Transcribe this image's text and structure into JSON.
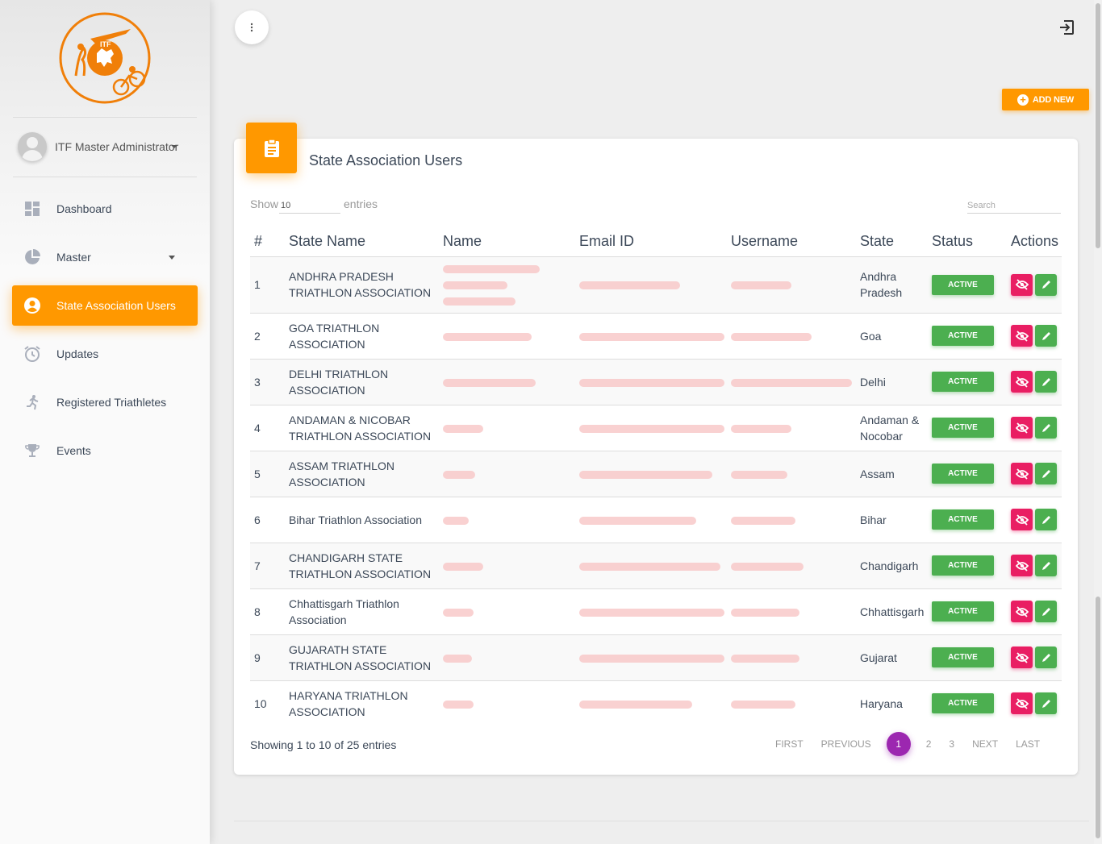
{
  "sidebar": {
    "logo_text": "ITF",
    "user_name": "ITF Master Administrator",
    "items": [
      {
        "label": "Dashboard",
        "icon": "dashboard-icon"
      },
      {
        "label": "Master",
        "icon": "pie-chart-icon"
      },
      {
        "label": "State Association Users",
        "icon": "account-circle-icon",
        "active": true
      },
      {
        "label": "Updates",
        "icon": "alarm-clock-icon"
      },
      {
        "label": "Registered Triathletes",
        "icon": "runner-icon"
      },
      {
        "label": "Events",
        "icon": "trophy-icon"
      }
    ]
  },
  "toolbar": {
    "add_new_label": "ADD NEW"
  },
  "card": {
    "title": "State Association Users",
    "show_label": "Show",
    "show_value": "10",
    "entries_label": "entries",
    "search_placeholder": "Search"
  },
  "table": {
    "headers": [
      "#",
      "State Name",
      "Name",
      "Email ID",
      "Username",
      "State",
      "Status",
      "Actions"
    ],
    "rows": [
      {
        "num": "1",
        "state_name": "ANDHRA PRADESH TRIATHLON ASSOCIATION",
        "state": "Andhra Pradesh",
        "status": "ACTIVE"
      },
      {
        "num": "2",
        "state_name": "GOA TRIATHLON ASSOCIATION",
        "state": "Goa",
        "status": "ACTIVE"
      },
      {
        "num": "3",
        "state_name": "DELHI TRIATHLON ASSOCIATION",
        "state": "Delhi",
        "status": "ACTIVE"
      },
      {
        "num": "4",
        "state_name": "ANDAMAN & NICOBAR TRIATHLON ASSOCIATION",
        "state": "Andaman & Nocobar",
        "status": "ACTIVE"
      },
      {
        "num": "5",
        "state_name": "ASSAM TRIATHLON ASSOCIATION",
        "state": "Assam",
        "status": "ACTIVE"
      },
      {
        "num": "6",
        "state_name": "Bihar Triathlon Association",
        "state": "Bihar",
        "status": "ACTIVE"
      },
      {
        "num": "7",
        "state_name": "CHANDIGARH STATE TRIATHLON ASSOCIATION",
        "state": "Chandigarh",
        "status": "ACTIVE"
      },
      {
        "num": "8",
        "state_name": "Chhattisgarh Triathlon Association",
        "state": "Chhattisgarh",
        "status": "ACTIVE"
      },
      {
        "num": "9",
        "state_name": "GUJARATH STATE TRIATHLON ASSOCIATION",
        "state": "Gujarat",
        "status": "ACTIVE"
      },
      {
        "num": "10",
        "state_name": "HARYANA TRIATHLON ASSOCIATION",
        "state": "Haryana",
        "status": "ACTIVE"
      }
    ]
  },
  "footer": {
    "showing_text": "Showing 1 to 10 of 25 entries",
    "pagination": [
      "FIRST",
      "PREVIOUS",
      "1",
      "2",
      "3",
      "NEXT",
      "LAST"
    ],
    "current_page": "1"
  },
  "colors": {
    "accent": "#ff9800",
    "active_badge": "#4caf50",
    "hide_button": "#e91e63",
    "current_page": "#9c27b0"
  }
}
